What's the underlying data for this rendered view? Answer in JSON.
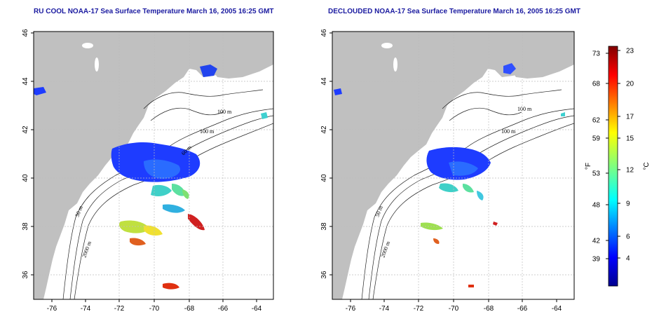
{
  "panels": [
    {
      "id": "left",
      "title": "RU COOL NOAA-17 Sea Surface Temperature March 16, 2005 16:25 GMT",
      "contour_labels": [
        "100 m",
        "100 m",
        "50 m",
        "2000 m",
        "60 m"
      ]
    },
    {
      "id": "right",
      "title": "DECLOUDED NOAA-17 Sea Surface Temperature March 16, 2005 16:25 GMT",
      "contour_labels": [
        "100 m",
        "100 m",
        "50 m",
        "2000 m"
      ]
    }
  ],
  "axes": {
    "x_ticks": [
      "-76",
      "-74",
      "-72",
      "-70",
      "-68",
      "-66",
      "-64"
    ],
    "y_ticks": [
      "36",
      "38",
      "40",
      "42",
      "44",
      "46"
    ]
  },
  "colorbar": {
    "left_unit": "°F",
    "right_unit": "°C",
    "f_ticks": [
      "73",
      "68",
      "62",
      "59",
      "53",
      "48",
      "42",
      "39"
    ],
    "c_ticks": [
      "23",
      "20",
      "17",
      "15",
      "12",
      "9",
      "6",
      "4"
    ]
  },
  "colors": {
    "land": "#c0c0c0",
    "title": "#1a1aa0",
    "grid": "#bdbdbd"
  }
}
